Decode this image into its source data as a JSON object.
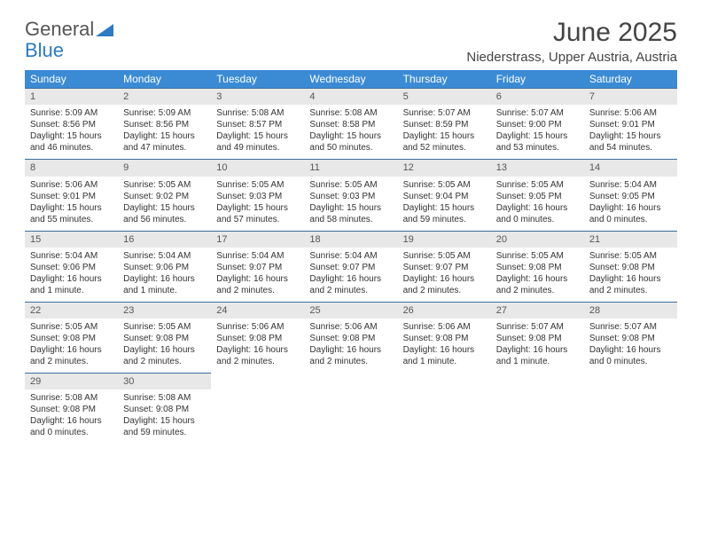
{
  "logo": {
    "text1": "General",
    "text2": "Blue"
  },
  "title": "June 2025",
  "location": "Niederstrass, Upper Austria, Austria",
  "colors": {
    "header_bg": "#3b8bd4",
    "header_text": "#ffffff",
    "daynum_bg": "#e8e8e8",
    "border": "#3b6ea0",
    "logo_blue": "#2c7bc4"
  },
  "daysOfWeek": [
    "Sunday",
    "Monday",
    "Tuesday",
    "Wednesday",
    "Thursday",
    "Friday",
    "Saturday"
  ],
  "cells": [
    {
      "n": "1",
      "sr": "5:09 AM",
      "ss": "8:56 PM",
      "dl": "15 hours and 46 minutes."
    },
    {
      "n": "2",
      "sr": "5:09 AM",
      "ss": "8:56 PM",
      "dl": "15 hours and 47 minutes."
    },
    {
      "n": "3",
      "sr": "5:08 AM",
      "ss": "8:57 PM",
      "dl": "15 hours and 49 minutes."
    },
    {
      "n": "4",
      "sr": "5:08 AM",
      "ss": "8:58 PM",
      "dl": "15 hours and 50 minutes."
    },
    {
      "n": "5",
      "sr": "5:07 AM",
      "ss": "8:59 PM",
      "dl": "15 hours and 52 minutes."
    },
    {
      "n": "6",
      "sr": "5:07 AM",
      "ss": "9:00 PM",
      "dl": "15 hours and 53 minutes."
    },
    {
      "n": "7",
      "sr": "5:06 AM",
      "ss": "9:01 PM",
      "dl": "15 hours and 54 minutes."
    },
    {
      "n": "8",
      "sr": "5:06 AM",
      "ss": "9:01 PM",
      "dl": "15 hours and 55 minutes."
    },
    {
      "n": "9",
      "sr": "5:05 AM",
      "ss": "9:02 PM",
      "dl": "15 hours and 56 minutes."
    },
    {
      "n": "10",
      "sr": "5:05 AM",
      "ss": "9:03 PM",
      "dl": "15 hours and 57 minutes."
    },
    {
      "n": "11",
      "sr": "5:05 AM",
      "ss": "9:03 PM",
      "dl": "15 hours and 58 minutes."
    },
    {
      "n": "12",
      "sr": "5:05 AM",
      "ss": "9:04 PM",
      "dl": "15 hours and 59 minutes."
    },
    {
      "n": "13",
      "sr": "5:05 AM",
      "ss": "9:05 PM",
      "dl": "16 hours and 0 minutes."
    },
    {
      "n": "14",
      "sr": "5:04 AM",
      "ss": "9:05 PM",
      "dl": "16 hours and 0 minutes."
    },
    {
      "n": "15",
      "sr": "5:04 AM",
      "ss": "9:06 PM",
      "dl": "16 hours and 1 minute."
    },
    {
      "n": "16",
      "sr": "5:04 AM",
      "ss": "9:06 PM",
      "dl": "16 hours and 1 minute."
    },
    {
      "n": "17",
      "sr": "5:04 AM",
      "ss": "9:07 PM",
      "dl": "16 hours and 2 minutes."
    },
    {
      "n": "18",
      "sr": "5:04 AM",
      "ss": "9:07 PM",
      "dl": "16 hours and 2 minutes."
    },
    {
      "n": "19",
      "sr": "5:05 AM",
      "ss": "9:07 PM",
      "dl": "16 hours and 2 minutes."
    },
    {
      "n": "20",
      "sr": "5:05 AM",
      "ss": "9:08 PM",
      "dl": "16 hours and 2 minutes."
    },
    {
      "n": "21",
      "sr": "5:05 AM",
      "ss": "9:08 PM",
      "dl": "16 hours and 2 minutes."
    },
    {
      "n": "22",
      "sr": "5:05 AM",
      "ss": "9:08 PM",
      "dl": "16 hours and 2 minutes."
    },
    {
      "n": "23",
      "sr": "5:05 AM",
      "ss": "9:08 PM",
      "dl": "16 hours and 2 minutes."
    },
    {
      "n": "24",
      "sr": "5:06 AM",
      "ss": "9:08 PM",
      "dl": "16 hours and 2 minutes."
    },
    {
      "n": "25",
      "sr": "5:06 AM",
      "ss": "9:08 PM",
      "dl": "16 hours and 2 minutes."
    },
    {
      "n": "26",
      "sr": "5:06 AM",
      "ss": "9:08 PM",
      "dl": "16 hours and 1 minute."
    },
    {
      "n": "27",
      "sr": "5:07 AM",
      "ss": "9:08 PM",
      "dl": "16 hours and 1 minute."
    },
    {
      "n": "28",
      "sr": "5:07 AM",
      "ss": "9:08 PM",
      "dl": "16 hours and 0 minutes."
    },
    {
      "n": "29",
      "sr": "5:08 AM",
      "ss": "9:08 PM",
      "dl": "16 hours and 0 minutes."
    },
    {
      "n": "30",
      "sr": "5:08 AM",
      "ss": "9:08 PM",
      "dl": "15 hours and 59 minutes."
    }
  ],
  "labels": {
    "sunrise": "Sunrise: ",
    "sunset": "Sunset: ",
    "daylight": "Daylight: "
  }
}
